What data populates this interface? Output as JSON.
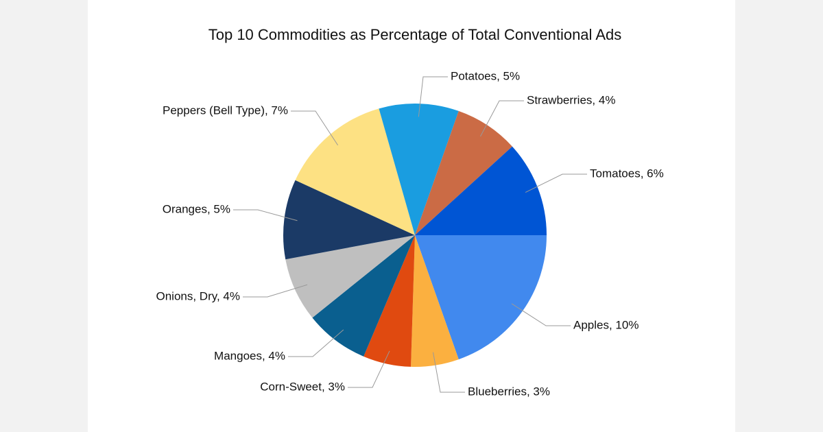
{
  "chart_data": {
    "type": "pie",
    "title": "Top 10 Commodities as Percentage of Total Conventional Ads",
    "values": [
      10,
      3,
      3,
      4,
      4,
      5,
      7,
      5,
      4,
      6
    ],
    "value_labels": [
      "Apples, 10%",
      "Blueberries, 3%",
      "Corn-Sweet, 3%",
      "Mangoes, 4%",
      "Onions, Dry, 4%",
      "Oranges, 5%",
      "Peppers (Bell Type), 7%",
      "Potatoes, 5%",
      "Strawberries, 4%",
      "Tomatoes, 6%"
    ],
    "colors": [
      "#4189ee",
      "#fbb040",
      "#e04a10",
      "#0a5f8f",
      "#bfbfbf",
      "#1b3a66",
      "#fde183",
      "#1a9de0",
      "#cb6b45",
      "#0055d4"
    ]
  }
}
